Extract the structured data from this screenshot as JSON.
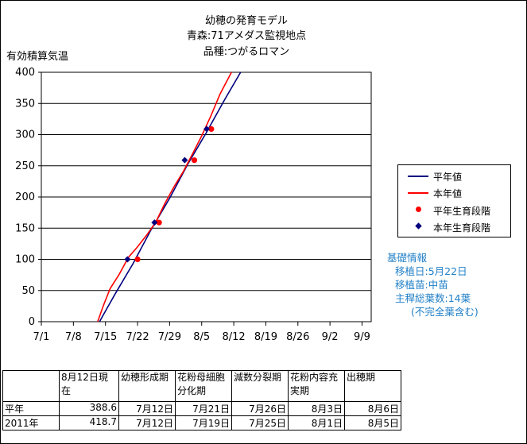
{
  "chart_data": {
    "type": "line",
    "title": [
      "幼穂の発育モデル",
      "青森:71アメダス監視地点",
      "品種:つがるロマン"
    ],
    "ylabel": "有効積算気温",
    "ylim": [
      0,
      400
    ],
    "yticks": [
      0,
      50,
      100,
      150,
      200,
      250,
      300,
      350,
      400
    ],
    "x_tick_labels": [
      "7/1",
      "7/8",
      "7/15",
      "7/22",
      "7/29",
      "8/5",
      "8/12",
      "8/19",
      "8/26",
      "9/2",
      "9/9"
    ],
    "x_tick_days": [
      0,
      7,
      14,
      21,
      28,
      35,
      42,
      49,
      56,
      63,
      70
    ],
    "x_range_days": [
      0,
      72
    ],
    "grid": "horizontal",
    "legend_position": "right",
    "series": [
      {
        "name": "平年値",
        "kind": "line",
        "color": "#00007f",
        "x_days": [
          12.7,
          16,
          20,
          24,
          28,
          32,
          36,
          40,
          43.5
        ],
        "y": [
          0,
          43,
          93,
          148,
          198,
          253,
          303,
          356,
          400
        ]
      },
      {
        "name": "本年値",
        "kind": "line",
        "color": "#ff0000",
        "x_days": [
          12.3,
          13.5,
          15,
          17,
          19,
          21,
          23,
          25,
          27,
          29,
          31,
          33,
          35,
          37,
          39,
          41.5
        ],
        "y": [
          0,
          25,
          53,
          76,
          103,
          120,
          139,
          160,
          190,
          217,
          241,
          269,
          298,
          330,
          365,
          400
        ]
      },
      {
        "name": "平年生育段階",
        "kind": "marker",
        "marker": "circle",
        "color": "#ff0000",
        "x_days": [
          21,
          25.7,
          33.4,
          37.1
        ],
        "y": [
          100,
          159,
          259,
          309
        ]
      },
      {
        "name": "本年生育段階",
        "kind": "marker",
        "marker": "diamond",
        "color": "#00007f",
        "x_days": [
          18.8,
          24.7,
          31.3,
          36.1
        ],
        "y": [
          100,
          159,
          259,
          309
        ]
      }
    ]
  },
  "info": {
    "heading": "基礎情報",
    "items": [
      "移植日:5月22日",
      "移植苗:中苗",
      "主稈総葉数:14葉",
      "(不完全葉含む)"
    ]
  },
  "table": {
    "headers": [
      "8月12日現在",
      "幼穂形成期",
      "花粉母細胞分化期",
      "減数分裂期",
      "花粉内容充実期",
      "出穂期"
    ],
    "rows": [
      {
        "label": "平年",
        "cells": [
          "388.6",
          "7月12日",
          "7月21日",
          "7月26日",
          "8月3日",
          "8月6日"
        ]
      },
      {
        "label": "2011年",
        "cells": [
          "418.7",
          "7月12日",
          "7月19日",
          "7月25日",
          "8月1日",
          "8月5日"
        ]
      }
    ]
  }
}
